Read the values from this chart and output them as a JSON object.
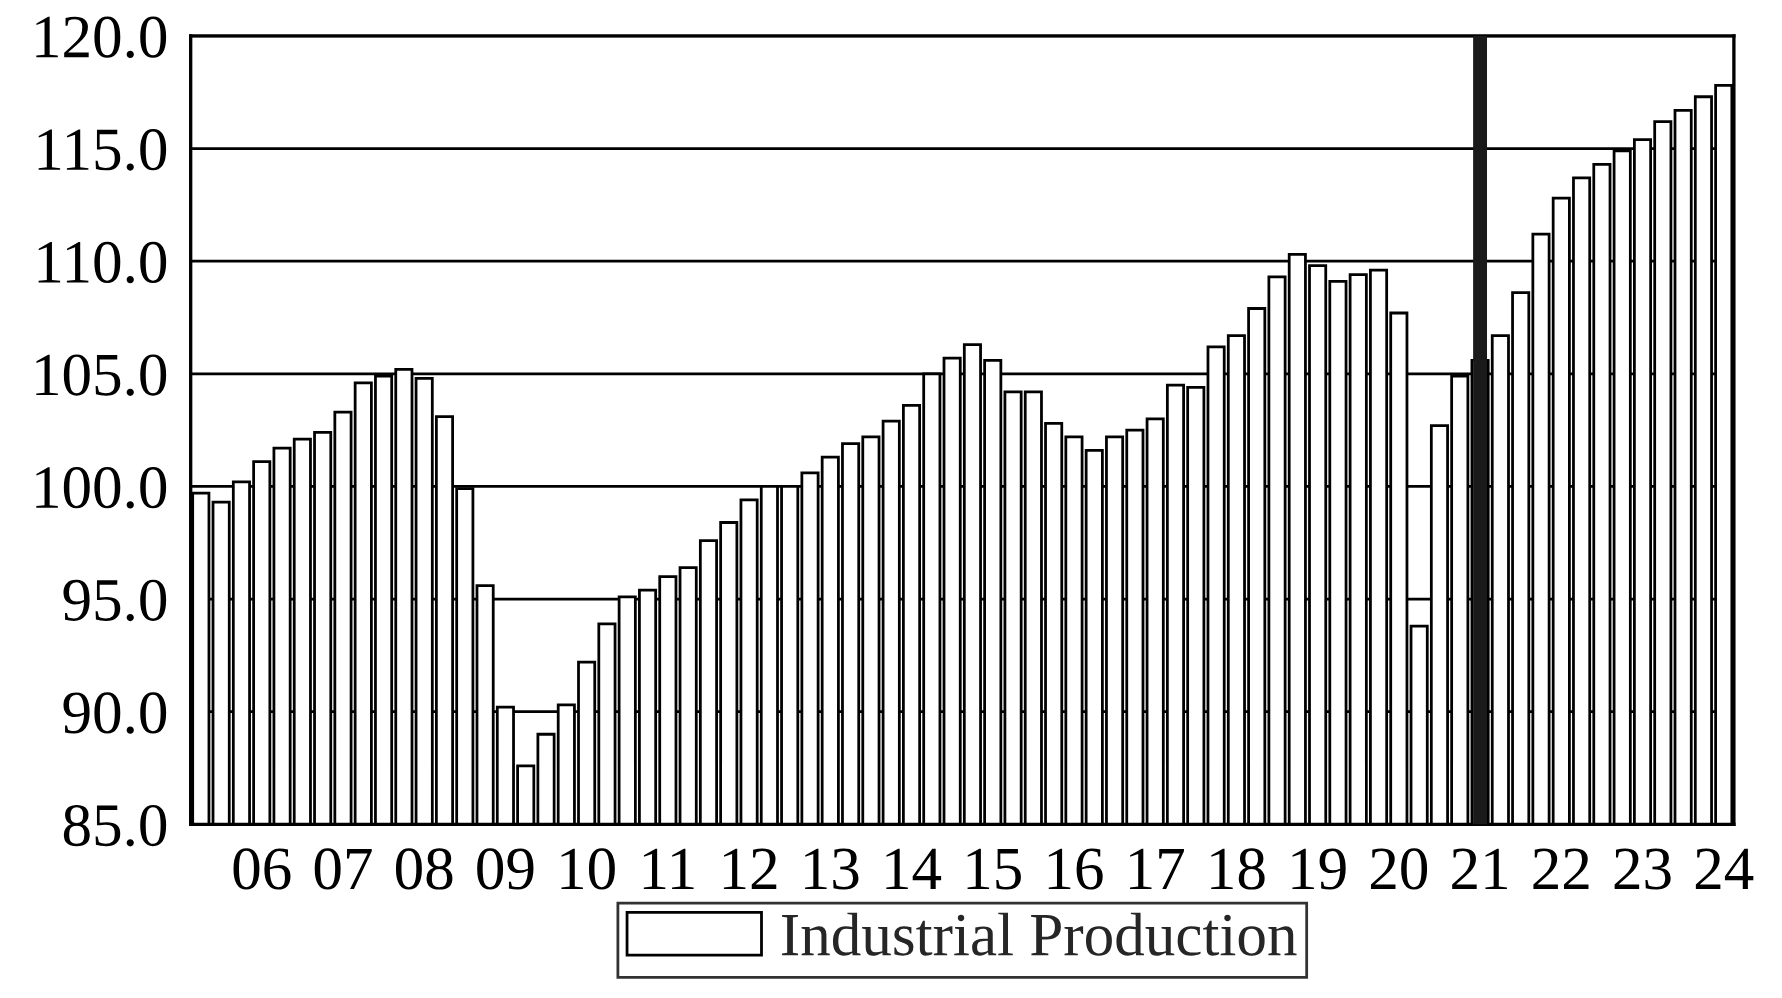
{
  "chart_data": {
    "type": "bar",
    "categories": [
      null,
      null,
      null,
      "06",
      null,
      null,
      null,
      "07",
      null,
      null,
      null,
      "08",
      null,
      null,
      null,
      "09",
      null,
      null,
      null,
      "10",
      null,
      null,
      null,
      "11",
      null,
      null,
      null,
      "12",
      null,
      null,
      null,
      "13",
      null,
      null,
      null,
      "14",
      null,
      null,
      null,
      "15",
      null,
      null,
      null,
      "16",
      null,
      null,
      null,
      "17",
      null,
      null,
      null,
      "18",
      null,
      null,
      null,
      "19",
      null,
      null,
      null,
      "20",
      null,
      null,
      null,
      "21",
      null,
      null,
      null,
      "22",
      null,
      null,
      null,
      "23",
      null,
      null,
      null,
      "24"
    ],
    "series": [
      {
        "name": "Industrial Production",
        "color": "#ffffff",
        "values": [
          99.7,
          99.3,
          100.2,
          101.1,
          101.7,
          102.1,
          102.4,
          103.3,
          104.6,
          104.9,
          105.2,
          104.8,
          103.1,
          99.9,
          95.6,
          90.2,
          87.6,
          89.0,
          90.3,
          92.2,
          93.9,
          95.1,
          95.4,
          96.0,
          96.4,
          97.6,
          98.4,
          99.4,
          100.0,
          100.0,
          100.6,
          101.3,
          101.9,
          102.2,
          102.9,
          103.6,
          105.0,
          105.7,
          106.3,
          105.6,
          104.2,
          104.2,
          102.8,
          102.2,
          101.6,
          102.2,
          102.5,
          103.0,
          104.5,
          104.4,
          106.2,
          106.7,
          107.9,
          109.3,
          110.3,
          109.8,
          109.1,
          109.4,
          109.6,
          107.7,
          93.8,
          102.7,
          104.9,
          105.6,
          106.7,
          108.6,
          111.2,
          112.8,
          113.7,
          114.3,
          114.9,
          115.4,
          116.2,
          116.7,
          117.3,
          117.8
        ]
      }
    ],
    "ylim": [
      85,
      120
    ],
    "yticks": [
      {
        "value": 85,
        "label": "85.0"
      },
      {
        "value": 90,
        "label": "90.0"
      },
      {
        "value": 95,
        "label": "95.0"
      },
      {
        "value": 100,
        "label": "100.0"
      },
      {
        "value": 105,
        "label": "105.0"
      },
      {
        "value": 110,
        "label": "110.0"
      },
      {
        "value": 115,
        "label": "115.0"
      },
      {
        "value": 120,
        "label": "120.0"
      }
    ],
    "grid": "y",
    "legend": "bottom",
    "ref_lines": [
      {
        "axis": "x",
        "value": "21",
        "color": "#1a1a1a"
      }
    ]
  }
}
